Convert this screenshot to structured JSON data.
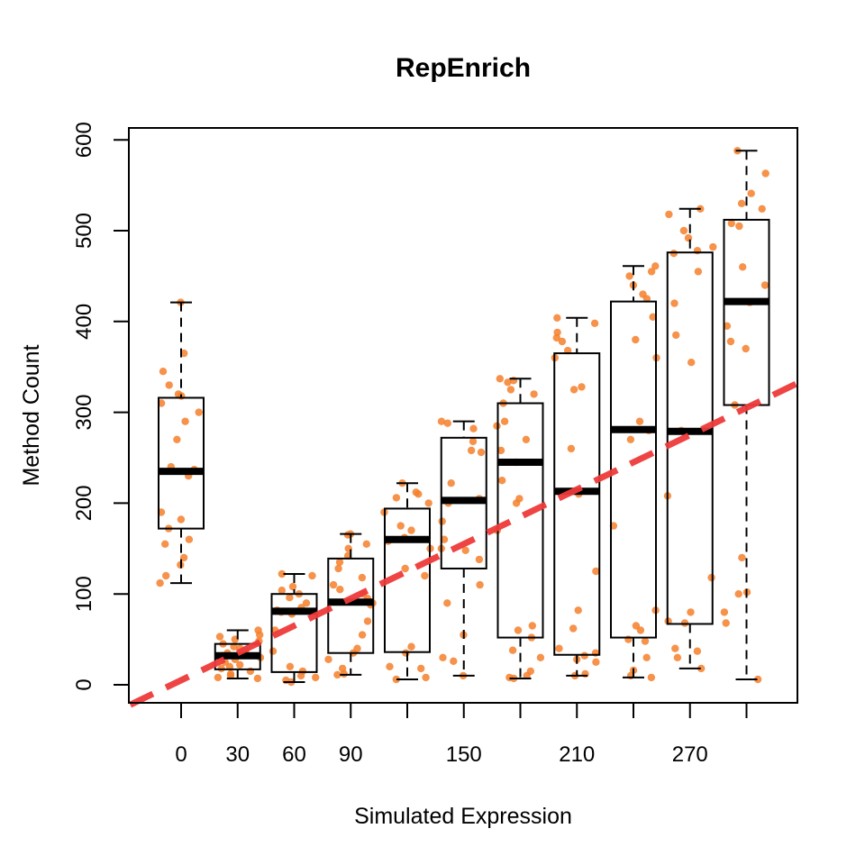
{
  "chart_data": {
    "type": "box",
    "title": "RepEnrich",
    "xlabel": "Simulated Expression",
    "ylabel": "Method Count",
    "xlim": [
      -30,
      330
    ],
    "ylim": [
      -20,
      612
    ],
    "x_ticks": [
      0,
      30,
      60,
      90,
      120,
      150,
      180,
      210,
      240,
      270,
      300
    ],
    "x_tick_labels": [
      "0",
      "30",
      "60",
      "90",
      "",
      "150",
      "",
      "210",
      "",
      "270",
      ""
    ],
    "y_ticks": [
      0,
      100,
      200,
      300,
      400,
      500,
      600
    ],
    "y_tick_labels": [
      "0",
      "100",
      "200",
      "300",
      "400",
      "500",
      "600"
    ],
    "colors": {
      "points": "#f47f2a",
      "trend": "#ee3a3a",
      "box": "#000000"
    },
    "trend_line": {
      "style": "dashed",
      "slope": 1.0,
      "intercept": 5,
      "x_range": [
        -27,
        330
      ]
    },
    "boxes": [
      {
        "x": 0,
        "whisker_low": 112,
        "q1": 172,
        "median": 235,
        "q3": 316,
        "whisker_high": 421
      },
      {
        "x": 30,
        "whisker_low": 7,
        "q1": 17,
        "median": 32,
        "q3": 45,
        "whisker_high": 60
      },
      {
        "x": 60,
        "whisker_low": 3,
        "q1": 14,
        "median": 81,
        "q3": 100,
        "whisker_high": 122
      },
      {
        "x": 90,
        "whisker_low": 11,
        "q1": 35,
        "median": 91,
        "q3": 139,
        "whisker_high": 166
      },
      {
        "x": 120,
        "whisker_low": 6,
        "q1": 36,
        "median": 160,
        "q3": 194,
        "whisker_high": 222
      },
      {
        "x": 150,
        "whisker_low": 10,
        "q1": 128,
        "median": 203,
        "q3": 272,
        "whisker_high": 290
      },
      {
        "x": 180,
        "whisker_low": 7,
        "q1": 52,
        "median": 245,
        "q3": 310,
        "whisker_high": 337
      },
      {
        "x": 210,
        "whisker_low": 10,
        "q1": 33,
        "median": 213,
        "q3": 365,
        "whisker_high": 404
      },
      {
        "x": 240,
        "whisker_low": 8,
        "q1": 52,
        "median": 281,
        "q3": 422,
        "whisker_high": 461
      },
      {
        "x": 270,
        "whisker_low": 18,
        "q1": 67,
        "median": 279,
        "q3": 476,
        "whisker_high": 524
      },
      {
        "x": 300,
        "whisker_low": 6,
        "q1": 308,
        "median": 422,
        "q3": 512,
        "whisker_high": 588
      }
    ],
    "points": [
      {
        "x": 0,
        "y": [
          421,
          365,
          345,
          330,
          320,
          318,
          310,
          300,
          290,
          270,
          240,
          237,
          230,
          190,
          182,
          172,
          160,
          155,
          140,
          132,
          120,
          112
        ]
      },
      {
        "x": 30,
        "y": [
          60,
          55,
          53,
          50,
          48,
          45,
          42,
          40,
          38,
          35,
          32,
          30,
          28,
          25,
          22,
          20,
          18,
          15,
          12,
          10,
          8,
          7
        ]
      },
      {
        "x": 60,
        "y": [
          122,
          120,
          108,
          104,
          100,
          96,
          90,
          85,
          82,
          80,
          78,
          60,
          37,
          20,
          15,
          10,
          8,
          5,
          3
        ]
      },
      {
        "x": 90,
        "y": [
          166,
          165,
          155,
          150,
          142,
          135,
          128,
          118,
          110,
          105,
          100,
          95,
          90,
          88,
          70,
          55,
          40,
          35,
          28,
          18,
          12,
          11
        ]
      },
      {
        "x": 120,
        "y": [
          222,
          212,
          210,
          206,
          200,
          190,
          175,
          170,
          162,
          158,
          150,
          128,
          120,
          42,
          35,
          20,
          18,
          8,
          6
        ]
      },
      {
        "x": 150,
        "y": [
          290,
          288,
          282,
          268,
          258,
          256,
          222,
          205,
          200,
          180,
          160,
          150,
          148,
          138,
          110,
          90,
          55,
          30,
          26,
          10
        ]
      },
      {
        "x": 180,
        "y": [
          337,
          335,
          333,
          325,
          320,
          310,
          290,
          285,
          270,
          258,
          245,
          225,
          205,
          200,
          170,
          65,
          60,
          52,
          38,
          30,
          15,
          10,
          8,
          7
        ]
      },
      {
        "x": 210,
        "y": [
          404,
          398,
          388,
          382,
          378,
          368,
          360,
          328,
          325,
          260,
          210,
          125,
          82,
          62,
          40,
          35,
          32,
          28,
          25,
          12,
          10
        ]
      },
      {
        "x": 240,
        "y": [
          461,
          455,
          450,
          440,
          430,
          425,
          405,
          380,
          360,
          290,
          280,
          270,
          175,
          82,
          65,
          60,
          50,
          48,
          30,
          16,
          10,
          8
        ]
      },
      {
        "x": 270,
        "y": [
          524,
          518,
          500,
          492,
          482,
          478,
          475,
          455,
          420,
          385,
          355,
          280,
          208,
          118,
          80,
          70,
          68,
          40,
          37,
          30,
          18
        ]
      },
      {
        "x": 300,
        "y": [
          588,
          563,
          541,
          530,
          524,
          508,
          505,
          460,
          440,
          421,
          395,
          378,
          370,
          308,
          140,
          102,
          100,
          80,
          68,
          6
        ]
      }
    ]
  }
}
